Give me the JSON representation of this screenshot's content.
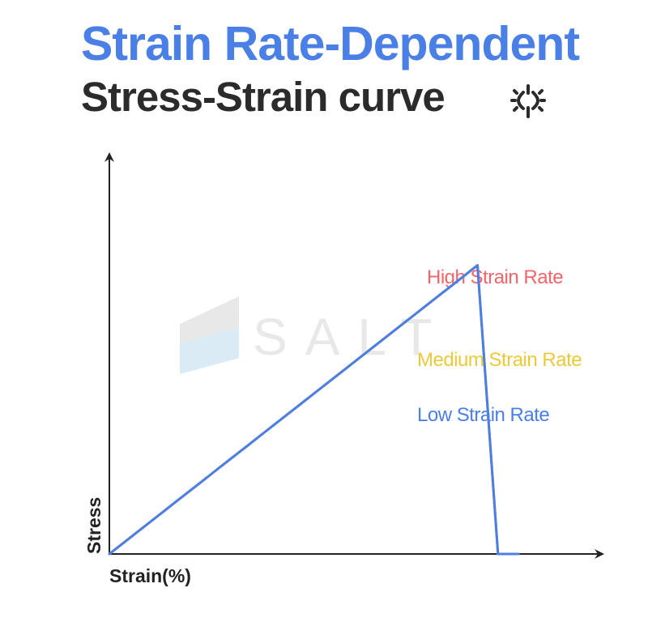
{
  "header": {
    "title_line1": "Strain Rate-Dependent",
    "title_line2": "Stress-Strain curve",
    "title_line1_color": "#4a7fe6",
    "title_line2_color": "#2b2b2b",
    "icon": "crosshair-burst-icon"
  },
  "watermark": {
    "text": "SALT",
    "color": "#e6e6e6",
    "accent": "#d6e9f5"
  },
  "chart_data": {
    "type": "line",
    "xlabel": "Strain(%)",
    "ylabel": "Stress",
    "xlim": [
      0,
      100
    ],
    "ylim": [
      0,
      100
    ],
    "grid": false,
    "legend": "inline-labels",
    "axis_color": "#222222",
    "series": [
      {
        "name": "High Strain Rate",
        "color": "#f0666b",
        "x": [
          0,
          2,
          4,
          6,
          8,
          10,
          12,
          14,
          16,
          18,
          20,
          22,
          24,
          26,
          28,
          30,
          32,
          34,
          36,
          38,
          40,
          45,
          50,
          55,
          60,
          65,
          70,
          75,
          80,
          85,
          90,
          95,
          100
        ],
        "y": [
          0,
          2.2,
          4.4,
          6.6,
          8.8,
          11,
          13.2,
          15.4,
          17.6,
          19.8,
          22,
          24.2,
          26.4,
          28.6,
          30.8,
          33,
          35.2,
          37.4,
          39.6,
          41.8,
          44,
          49.5,
          55,
          60.5,
          66,
          71.5,
          77,
          82.5,
          88,
          93.5,
          99,
          0,
          0
        ]
      },
      {
        "name": "Medium Strain Rate",
        "color": "#ebc93a",
        "x": [
          0,
          2,
          4,
          6,
          8,
          10,
          12,
          14,
          16,
          18,
          20,
          22,
          24,
          26,
          28,
          30,
          32,
          34,
          36,
          38,
          40,
          45,
          50,
          55,
          60,
          65,
          70,
          75,
          80,
          85,
          90,
          95,
          100
        ],
        "y": [
          0,
          2.2,
          4.4,
          6.6,
          8.8,
          11,
          13.2,
          15.4,
          17.6,
          19.8,
          22,
          24.2,
          26.4,
          28.6,
          30.8,
          33,
          35.2,
          37.4,
          39.6,
          41.8,
          44,
          49.5,
          55,
          60.5,
          66,
          71.5,
          77,
          82.5,
          88,
          93.5,
          99,
          0,
          0
        ]
      },
      {
        "name": "Low Strain Rate",
        "color": "#4a7fe6",
        "x": [
          0,
          2,
          4,
          6,
          8,
          10,
          12,
          14,
          16,
          18,
          20,
          22,
          24,
          26,
          28,
          30,
          32,
          34,
          36,
          38,
          40,
          45,
          50,
          55,
          60,
          65,
          70,
          75,
          80,
          85,
          90,
          95,
          100
        ],
        "y": [
          0,
          2.2,
          4.4,
          6.6,
          8.8,
          11,
          13.2,
          15.4,
          17.6,
          19.8,
          22,
          24.2,
          26.4,
          28.6,
          30.8,
          33,
          35.2,
          37.4,
          39.6,
          41.8,
          44,
          49.5,
          55,
          60.5,
          66,
          71.5,
          77,
          82.5,
          88,
          93.5,
          99,
          0,
          0
        ]
      }
    ]
  }
}
